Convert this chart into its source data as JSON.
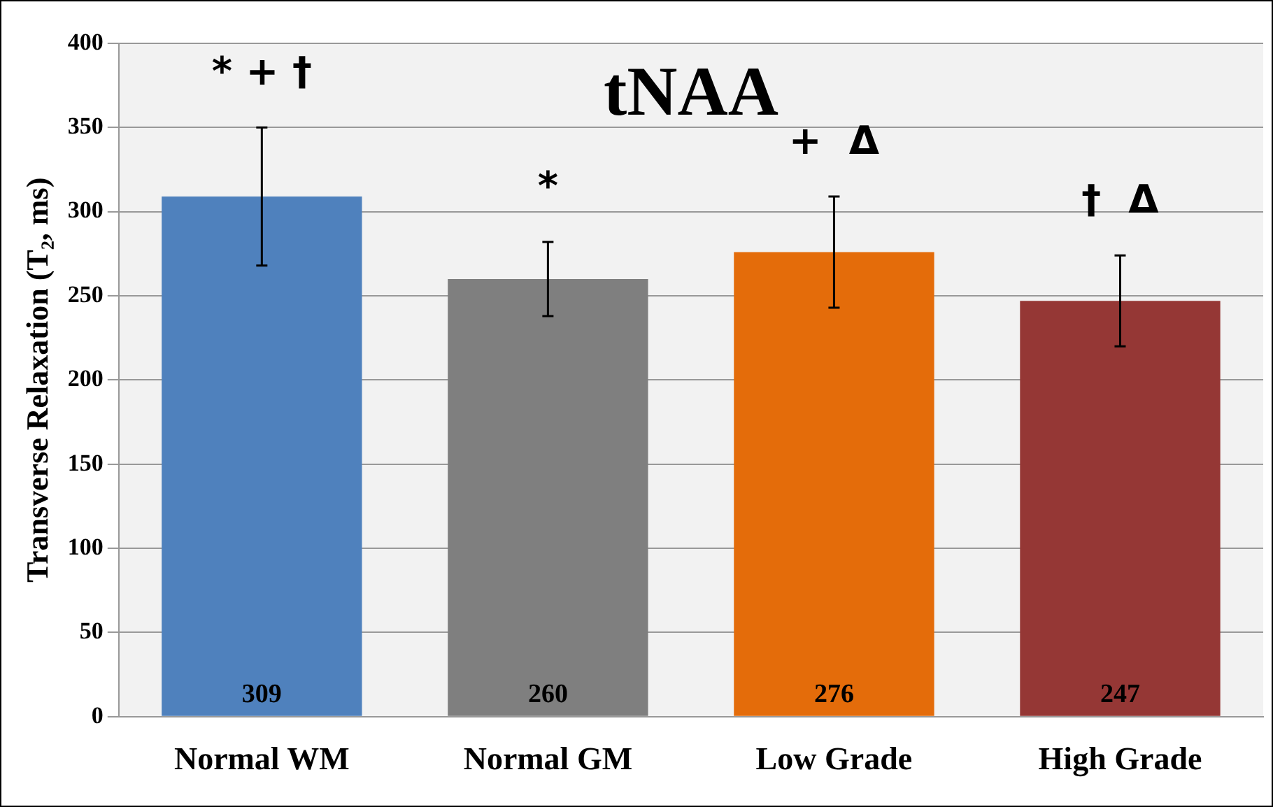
{
  "chart_data": {
    "type": "bar",
    "title": "tNAA",
    "ylabel": "Transverse Relaxation (T₂, ms)",
    "categories": [
      "Normal WM",
      "Normal GM",
      "Low Grade",
      "High Grade"
    ],
    "values": [
      309,
      260,
      276,
      247
    ],
    "colors": [
      "#4f81bd",
      "#7f7f7f",
      "#e46c0a",
      "#953735"
    ],
    "errors": [
      41,
      22,
      33,
      27
    ],
    "data_labels": true,
    "ylim": [
      0,
      400
    ],
    "yticks": [
      0,
      50,
      100,
      150,
      200,
      250,
      300,
      350,
      400
    ],
    "grid": "y",
    "legend": false,
    "annotations": [
      "* + †",
      "*",
      "+  Δ",
      "†  Δ"
    ]
  }
}
